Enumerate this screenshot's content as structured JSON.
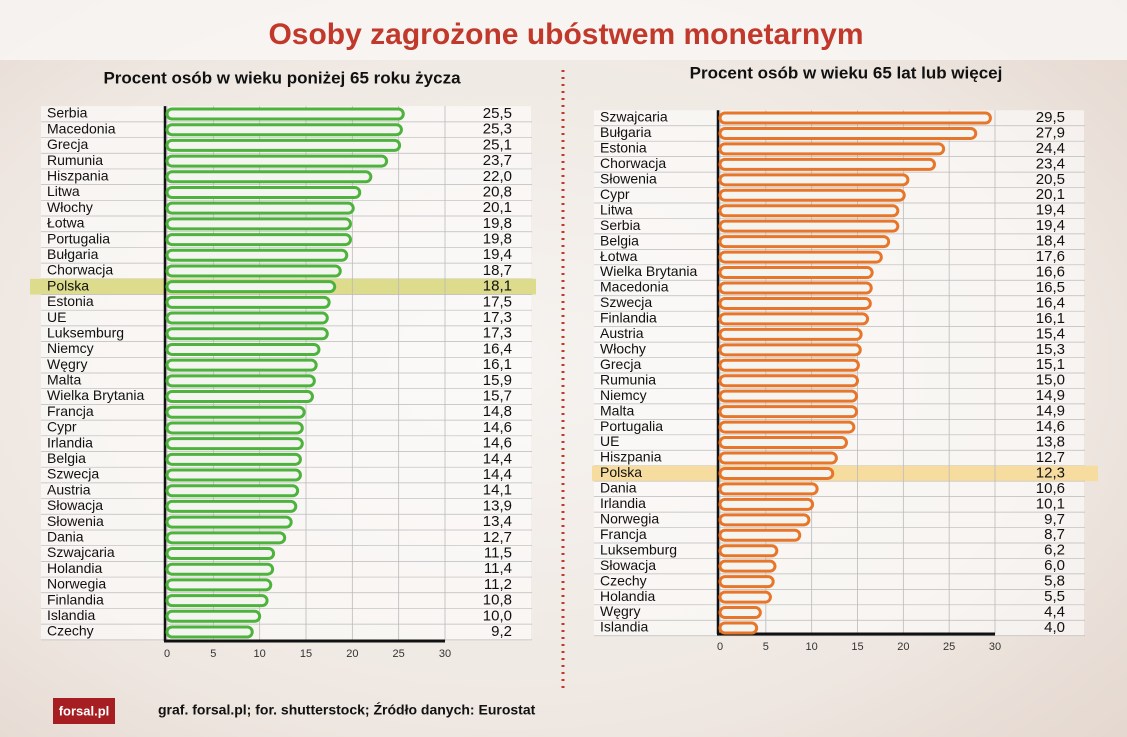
{
  "title": "Osoby zagrożone ubóstwem monetarnym",
  "source": "graf. forsal.pl; for. shutterstock;  Źródło danych:  Eurostat",
  "logo": "forsal.pl",
  "chart_data": [
    {
      "type": "bar",
      "orientation": "horizontal",
      "title": "Procent osób w wieku poniżej 65 roku życza",
      "categories": [
        "Serbia",
        "Macedonia",
        "Grecja",
        "Rumunia",
        "Hiszpania",
        "Litwa",
        "Włochy",
        "Łotwa",
        "Portugalia",
        "Bułgaria",
        "Chorwacja",
        "Polska",
        "Estonia",
        "UE",
        "Luksemburg",
        "Niemcy",
        "Węgry",
        "Malta",
        "Wielka Brytania",
        "Francja",
        "Cypr",
        "Irlandia",
        "Belgia",
        "Szwecja",
        "Austria",
        "Słowacja",
        "Słowenia",
        "Dania",
        "Szwajcaria",
        "Holandia",
        "Norwegia",
        "Finlandia",
        "Islandia",
        "Czechy"
      ],
      "values": [
        25.5,
        25.3,
        25.1,
        23.7,
        22.0,
        20.8,
        20.1,
        19.8,
        19.8,
        19.4,
        18.7,
        18.1,
        17.5,
        17.3,
        17.3,
        16.4,
        16.1,
        15.9,
        15.7,
        14.8,
        14.6,
        14.6,
        14.4,
        14.4,
        14.1,
        13.9,
        13.4,
        12.7,
        11.5,
        11.4,
        11.2,
        10.8,
        10.0,
        9.2
      ],
      "value_labels": [
        "25,5",
        "25,3",
        "25,1",
        "23,7",
        "22,0",
        "20,8",
        "20,1",
        "19,8",
        "19,8",
        "19,4",
        "18,7",
        "18,1",
        "17,5",
        "17,3",
        "17,3",
        "16,4",
        "16,1",
        "15,9",
        "15,7",
        "14,8",
        "14,6",
        "14,6",
        "14,4",
        "14,4",
        "14,1",
        "13,9",
        "13,4",
        "12,7",
        "11,5",
        "11,4",
        "11,2",
        "10,8",
        "10,0",
        "9,2"
      ],
      "color": "#4db33d",
      "highlight": "Polska",
      "highlight_color": "#dcdc8c",
      "xlim": [
        0,
        30
      ],
      "xticks": [
        0,
        5,
        10,
        15,
        20,
        25,
        30
      ],
      "grid": true
    },
    {
      "type": "bar",
      "orientation": "horizontal",
      "title": "Procent osób w wieku 65 lat lub więcej",
      "categories": [
        "Szwajcaria",
        "Bułgaria",
        "Estonia",
        "Chorwacja",
        "Słowenia",
        "Cypr",
        "Litwa",
        "Serbia",
        "Belgia",
        "Łotwa",
        "Wielka Brytania",
        "Macedonia",
        "Szwecja",
        "Finlandia",
        "Austria",
        "Włochy",
        "Grecja",
        "Rumunia",
        "Niemcy",
        "Malta",
        "Portugalia",
        "UE",
        "Hiszpania",
        "Polska",
        "Dania",
        "Irlandia",
        "Norwegia",
        "Francja",
        "Luksemburg",
        "Słowacja",
        "Czechy",
        "Holandia",
        "Węgry",
        "Islandia"
      ],
      "values": [
        29.5,
        27.9,
        24.4,
        23.4,
        20.5,
        20.1,
        19.4,
        19.4,
        18.4,
        17.6,
        16.6,
        16.5,
        16.4,
        16.1,
        15.4,
        15.3,
        15.1,
        15.0,
        14.9,
        14.9,
        14.6,
        13.8,
        12.7,
        12.3,
        10.6,
        10.1,
        9.7,
        8.7,
        6.2,
        6.0,
        5.8,
        5.5,
        4.4,
        4.0
      ],
      "value_labels": [
        "29,5",
        "27,9",
        "24,4",
        "23,4",
        "20,5",
        "20,1",
        "19,4",
        "19,4",
        "18,4",
        "17,6",
        "16,6",
        "16,5",
        "16,4",
        "16,1",
        "15,4",
        "15,3",
        "15,1",
        "15,0",
        "14,9",
        "14,9",
        "14,6",
        "13,8",
        "12,7",
        "12,3",
        "10,6",
        "10,1",
        "9,7",
        "8,7",
        "6,2",
        "6,0",
        "5,8",
        "5,5",
        "4,4",
        "4,0"
      ],
      "color": "#e8762a",
      "highlight": "Polska",
      "highlight_color": "#f7dca0",
      "xlim": [
        0,
        30
      ],
      "xticks": [
        0,
        5,
        10,
        15,
        20,
        25,
        30
      ],
      "grid": true
    }
  ]
}
